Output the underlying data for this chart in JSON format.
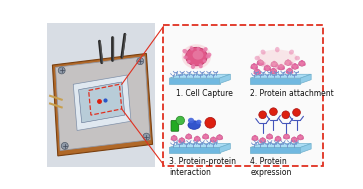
{
  "fig_width": 3.63,
  "fig_height": 1.89,
  "dpi": 100,
  "background_color": "#ffffff",
  "dashed_border_color": "#e03020",
  "label_fontsize": 5.5,
  "label_color": "#111111",
  "antibody_color": "#7090cc",
  "protein_pink": "#e878a8",
  "protein_green": "#44bb44",
  "protein_blue": "#2855c8",
  "protein_red": "#dd2010",
  "platform_top": "#aaddf5",
  "platform_front": "#70b8e0",
  "platform_right": "#90cce8",
  "panel_labels": [
    "1. Cell Capture",
    "2. Protein attachment",
    "3. Protein-protein\ninteraction",
    "4. Protein\nexpression"
  ]
}
